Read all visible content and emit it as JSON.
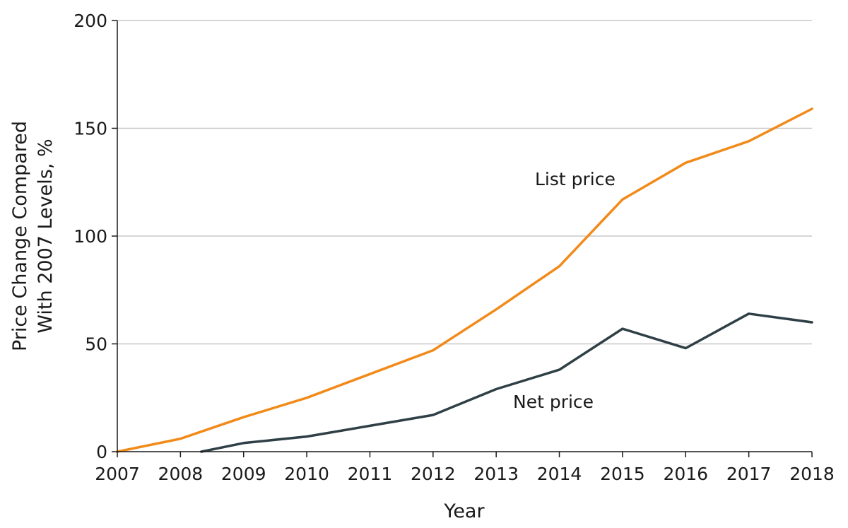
{
  "chart_data": {
    "type": "line",
    "title": "",
    "xlabel": "Year",
    "ylabel_lines": [
      "Price Change Compared",
      "With 2007 Levels, %"
    ],
    "x": [
      2007,
      2008,
      2009,
      2010,
      2011,
      2012,
      2013,
      2014,
      2015,
      2016,
      2017,
      2018
    ],
    "xlim": [
      2007,
      2018
    ],
    "ylim": [
      0,
      200
    ],
    "xticks": [
      "2007",
      "2008",
      "2009",
      "2010",
      "2011",
      "2012",
      "2013",
      "2014",
      "2015",
      "2016",
      "2017",
      "2018"
    ],
    "yticks": [
      "0",
      "50",
      "100",
      "150",
      "200"
    ],
    "ytick_values": [
      0,
      50,
      100,
      150,
      200
    ],
    "grid": "horizontal",
    "series": [
      {
        "name": "List price",
        "color": "#f28a1a",
        "points": [
          [
            2007,
            0
          ],
          [
            2008,
            6
          ],
          [
            2009,
            16
          ],
          [
            2010,
            25
          ],
          [
            2011,
            36
          ],
          [
            2012,
            47
          ],
          [
            2013,
            66
          ],
          [
            2014,
            86
          ],
          [
            2015,
            117
          ],
          [
            2016,
            134
          ],
          [
            2017,
            144
          ],
          [
            2018,
            159
          ]
        ]
      },
      {
        "name": "Net price",
        "color": "#2f3f46",
        "points": [
          [
            2008.33,
            0
          ],
          [
            2009,
            4
          ],
          [
            2010,
            7
          ],
          [
            2011,
            12
          ],
          [
            2012,
            17
          ],
          [
            2013,
            29
          ],
          [
            2014,
            38
          ],
          [
            2015,
            57
          ],
          [
            2016,
            48
          ],
          [
            2017,
            64
          ],
          [
            2018,
            60
          ]
        ]
      }
    ]
  }
}
